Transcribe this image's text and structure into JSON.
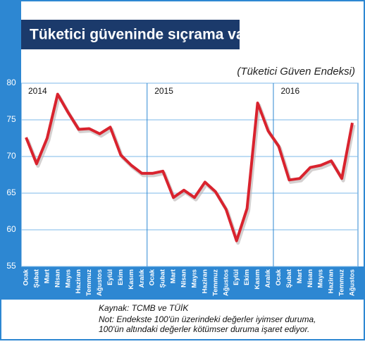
{
  "chart_data": {
    "type": "line",
    "title": "Tüketici güveninde sıçrama var",
    "subtitle": "(Tüketici Güven Endeksi)",
    "categories": [
      "Ocak",
      "Şubat",
      "Mart",
      "Nisan",
      "Mayıs",
      "Haziran",
      "Temmuz",
      "Ağustos",
      "Eylül",
      "Ekim",
      "Kasım",
      "Aralık",
      "Ocak",
      "Şubat",
      "Mart",
      "Nisan",
      "Mayıs",
      "Haziran",
      "Temmuz",
      "Ağustos",
      "Eylül",
      "Ekim",
      "Kasım",
      "Aralık",
      "Ocak",
      "Şubat",
      "Mart",
      "Nisan",
      "Mayıs",
      "Haziran",
      "Temmuz",
      "Ağustos"
    ],
    "values": [
      72.6,
      69.0,
      72.5,
      78.5,
      76.0,
      73.7,
      73.8,
      73.1,
      74.0,
      70.2,
      68.8,
      67.7,
      67.7,
      68.0,
      64.4,
      65.4,
      64.4,
      66.5,
      65.2,
      62.8,
      58.5,
      62.9,
      77.3,
      73.5,
      71.4,
      66.8,
      67.0,
      68.5,
      68.8,
      69.4,
      67.0,
      74.6
    ],
    "color": "#d9232e",
    "ylim": [
      55,
      80
    ],
    "yticks": [
      55,
      60,
      65,
      70,
      75,
      80
    ],
    "grid": true,
    "year_labels": [
      "2014",
      "2015",
      "2016"
    ],
    "notes": [
      "Kaynak: TCMB ve TÜİK",
      "Not: Endekste 100'ün üzerindeki değerler iyimser duruma,",
      "100'ün altındaki değerler kötümser duruma işaret ediyor."
    ]
  }
}
